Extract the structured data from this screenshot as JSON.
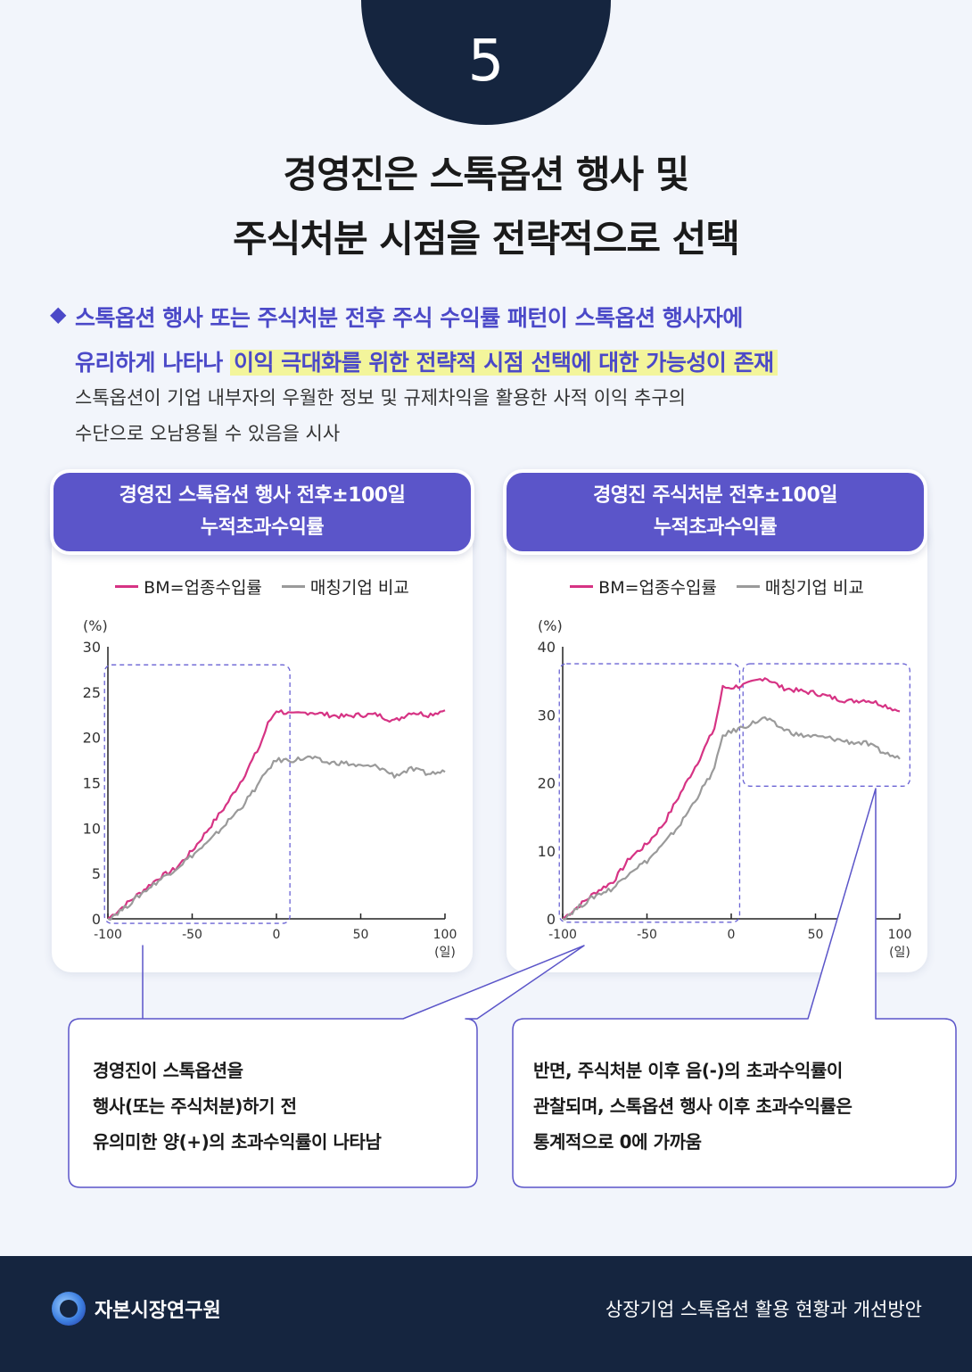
{
  "page_number": "5",
  "title": {
    "line1": "경영진은 스톡옵션 행사 및",
    "line2": "주식처분 시점을 전략적으로 선택"
  },
  "bullet_icon": "diamond-icon",
  "headline": {
    "part1": "스톡옵션 행사 또는 주식처분 전후 주식 수익률 패턴이 스톡옵션 행사자에",
    "part2": "유리하게 나타나",
    "highlight": "이익 극대화를 위한 전략적 시점 선택에 대한 가능성이 존재"
  },
  "description": {
    "line1": "스톡옵션이 기업 내부자의 우월한 정보 및 규제차익을 활용한 사적 이익 추구의",
    "line2": "수단으로 오남용될 수 있음을 시사"
  },
  "legend": {
    "bm": "BM=업종수입률",
    "matching": "매칭기업 비교"
  },
  "colors": {
    "bm": "#d63384",
    "matching": "#9a9a9a",
    "accent": "#5b55c9",
    "navy": "#15253f",
    "highlight": "#f3f59b"
  },
  "chart_data": [
    {
      "type": "line",
      "title_line1": "경영진 스톡옵션 행사 전후±100일",
      "title_line2": "누적초과수익률",
      "y_unit": "(%)",
      "x_unit": "(일)",
      "xlim": [
        -100,
        100
      ],
      "ylim": [
        0,
        30
      ],
      "x_ticks": [
        "-100",
        "-50",
        "0",
        "50",
        "100"
      ],
      "y_ticks": [
        "0",
        "5",
        "10",
        "15",
        "20",
        "25",
        "30"
      ],
      "y_tick_values": [
        0,
        5,
        10,
        15,
        20,
        25,
        30
      ],
      "x": [
        -100,
        -90,
        -80,
        -70,
        -60,
        -50,
        -40,
        -30,
        -20,
        -10,
        -5,
        0,
        10,
        20,
        30,
        40,
        50,
        60,
        70,
        80,
        90,
        100
      ],
      "series": [
        {
          "name": "BM=업종수입률",
          "values": [
            0,
            1.5,
            3,
            4.5,
            5.5,
            7.5,
            10,
            12.5,
            15.5,
            19,
            21.5,
            23,
            22.5,
            22.8,
            22.5,
            22.3,
            22.5,
            22.5,
            21.8,
            22.8,
            22.5,
            23
          ]
        },
        {
          "name": "매칭기업 비교",
          "values": [
            0,
            1.2,
            2.8,
            4.2,
            5.5,
            7,
            8.5,
            10.5,
            12.5,
            15,
            16.5,
            17.5,
            17.5,
            17.8,
            17.2,
            17.2,
            16.8,
            16.8,
            15.8,
            16.5,
            16,
            16.2
          ]
        }
      ]
    },
    {
      "type": "line",
      "title_line1": "경영진 주식처분 전후±100일",
      "title_line2": "누적초과수익률",
      "y_unit": "(%)",
      "x_unit": "(일)",
      "xlim": [
        -100,
        100
      ],
      "ylim": [
        0,
        40
      ],
      "x_ticks": [
        "-100",
        "-50",
        "0",
        "50",
        "100"
      ],
      "y_ticks": [
        "0",
        "10",
        "20",
        "30",
        "40"
      ],
      "y_tick_values": [
        0,
        10,
        20,
        30,
        40
      ],
      "x": [
        -100,
        -90,
        -80,
        -70,
        -60,
        -50,
        -40,
        -30,
        -20,
        -10,
        -5,
        0,
        10,
        20,
        30,
        40,
        50,
        60,
        70,
        80,
        90,
        100
      ],
      "series": [
        {
          "name": "BM=업종수입률",
          "values": [
            0,
            2,
            4,
            5.5,
            9,
            11,
            14,
            18.5,
            23,
            28,
            34,
            34,
            34.5,
            35.5,
            34,
            33.5,
            33.2,
            32.5,
            32,
            32.2,
            31.5,
            30.5
          ]
        },
        {
          "name": "매칭기업 비교",
          "values": [
            0,
            1.8,
            3.5,
            4.5,
            7,
            8.5,
            11,
            14,
            18,
            22,
            27,
            27.5,
            28.5,
            29.5,
            28,
            27,
            26.8,
            26.5,
            26,
            25.8,
            24.5,
            23.5
          ]
        }
      ]
    }
  ],
  "callouts": {
    "left": {
      "line1": "경영진이 스톡옵션을",
      "line2": "행사(또는 주식처분)하기 전",
      "line3": "유의미한 양(+)의 초과수익률이 나타남"
    },
    "right": {
      "line1": "반면, 주식처분 이후 음(-)의 초과수익률이",
      "line2": "관찰되며, 스톡옵션 행사 이후 초과수익률은",
      "line3": "통계적으로 0에 가까움"
    }
  },
  "footer": {
    "logo_text": "자본시장연구원",
    "logo_icon": "kcmi-logo-icon",
    "report_title": "상장기업 스톡옵션 활용 현황과 개선방안"
  }
}
